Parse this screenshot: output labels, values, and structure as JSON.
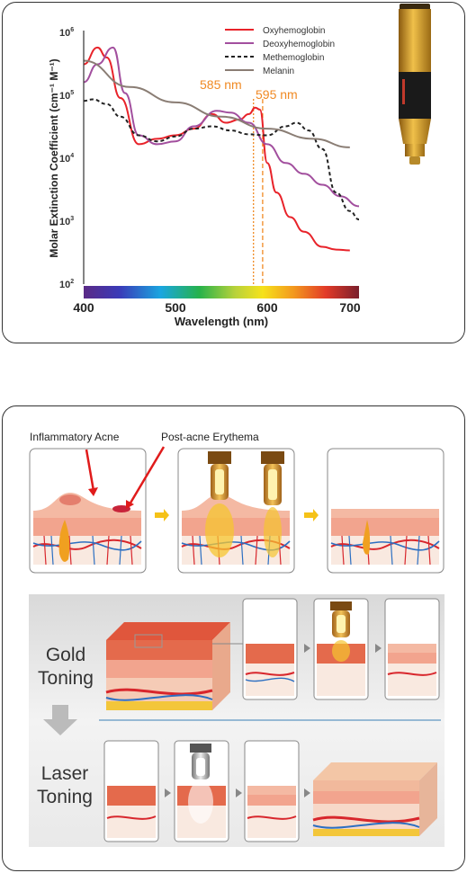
{
  "chart_data": {
    "type": "line",
    "ylabel": "Molar Extinction Coefficient (cm⁻¹ M⁻¹)",
    "xlabel": "Wavelength (nm)",
    "xlim": [
      400,
      700
    ],
    "ylim_log10": [
      2,
      6
    ],
    "yscale": "log",
    "x_ticks": [
      "400",
      "500",
      "600",
      "700"
    ],
    "y_ticks": [
      {
        "base": "10",
        "exp": "6"
      },
      {
        "base": "10",
        "exp": "5"
      },
      {
        "base": "10",
        "exp": "4"
      },
      {
        "base": "10",
        "exp": "3"
      },
      {
        "base": "10",
        "exp": "2"
      }
    ],
    "legend_position": "top-right",
    "annotations": [
      {
        "label": "585 nm",
        "x": 585
      },
      {
        "label": "595 nm",
        "x": 595
      }
    ],
    "series": [
      {
        "name": "Oxyhemoglobin",
        "color": "#e8232a",
        "dash": "none",
        "points": [
          [
            400,
            350000
          ],
          [
            415,
            650000
          ],
          [
            425,
            450000
          ],
          [
            440,
            100000
          ],
          [
            460,
            18000
          ],
          [
            480,
            22000
          ],
          [
            500,
            25000
          ],
          [
            520,
            32000
          ],
          [
            540,
            55000
          ],
          [
            555,
            40000
          ],
          [
            570,
            45000
          ],
          [
            580,
            55000
          ],
          [
            587,
            70000
          ],
          [
            592,
            65000
          ],
          [
            600,
            9000
          ],
          [
            610,
            3000
          ],
          [
            625,
            1200
          ],
          [
            640,
            700
          ],
          [
            660,
            400
          ],
          [
            675,
            360
          ],
          [
            690,
            350
          ]
        ]
      },
      {
        "name": "Deoxyhemoglobin",
        "color": "#a24f9e",
        "dash": "none",
        "points": [
          [
            400,
            180000
          ],
          [
            415,
            350000
          ],
          [
            432,
            650000
          ],
          [
            445,
            120000
          ],
          [
            460,
            25000
          ],
          [
            480,
            18000
          ],
          [
            500,
            20000
          ],
          [
            520,
            35000
          ],
          [
            545,
            62000
          ],
          [
            560,
            58000
          ],
          [
            580,
            40000
          ],
          [
            600,
            18000
          ],
          [
            620,
            9000
          ],
          [
            640,
            6000
          ],
          [
            660,
            4000
          ],
          [
            680,
            2600
          ],
          [
            700,
            1800
          ]
        ]
      },
      {
        "name": "Methemoglobin",
        "color": "#222222",
        "dash": "4,3",
        "points": [
          [
            400,
            90000
          ],
          [
            410,
            95000
          ],
          [
            425,
            80000
          ],
          [
            440,
            50000
          ],
          [
            460,
            25000
          ],
          [
            480,
            20000
          ],
          [
            500,
            24000
          ],
          [
            520,
            32000
          ],
          [
            540,
            35000
          ],
          [
            560,
            30000
          ],
          [
            580,
            26000
          ],
          [
            600,
            25000
          ],
          [
            620,
            35000
          ],
          [
            632,
            40000
          ],
          [
            645,
            30000
          ],
          [
            660,
            15000
          ],
          [
            675,
            3000
          ],
          [
            690,
            1500
          ],
          [
            700,
            1100
          ]
        ]
      },
      {
        "name": "Melanin",
        "color": "#8a7d74",
        "dash": "none",
        "points": [
          [
            400,
            400000
          ],
          [
            450,
            150000
          ],
          [
            500,
            85000
          ],
          [
            550,
            50000
          ],
          [
            600,
            32000
          ],
          [
            650,
            22000
          ],
          [
            690,
            16000
          ]
        ]
      }
    ]
  },
  "diagram": {
    "acne_label": "Inflammatory Acne",
    "erythema_label": "Post-acne Erythema",
    "gold_label_1": "Gold",
    "gold_label_2": "Toning",
    "laser_label_1": "Laser",
    "laser_label_2": "Toning"
  }
}
